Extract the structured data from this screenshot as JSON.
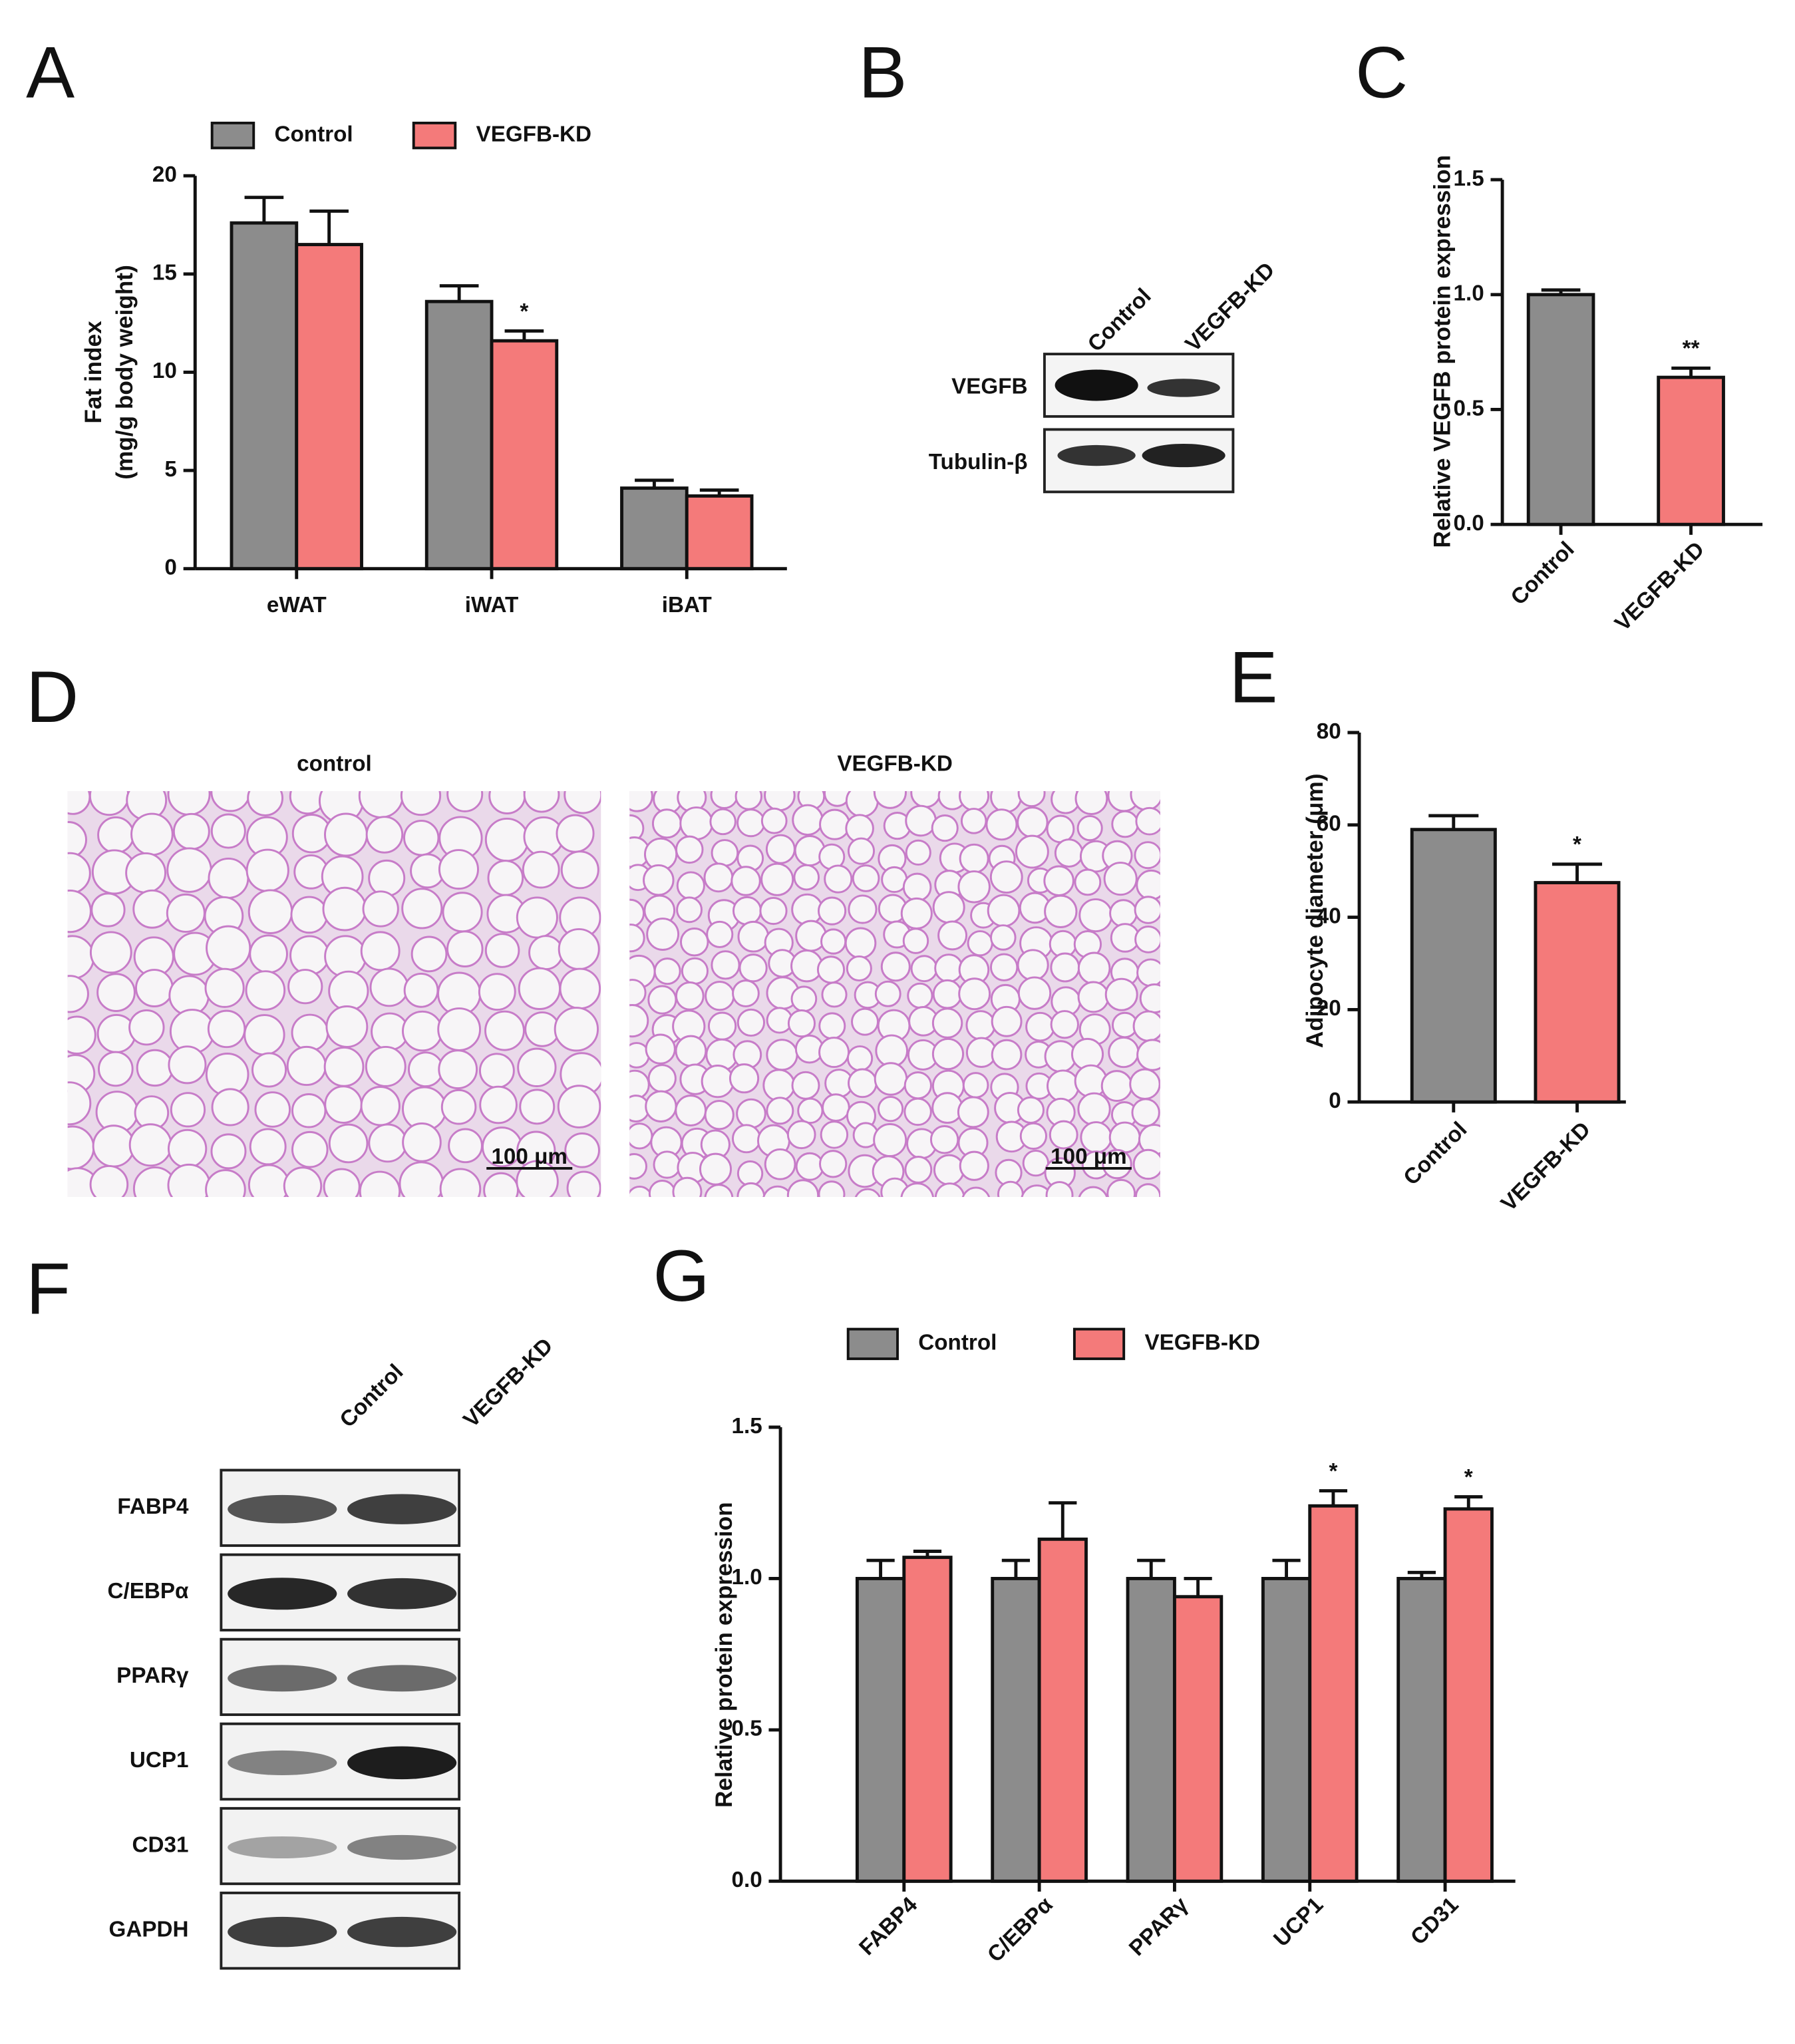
{
  "panel_labels": [
    "A",
    "B",
    "C",
    "D",
    "E",
    "F",
    "G"
  ],
  "chart_data": [
    {
      "type": "bar",
      "ylabel": [
        "Fat index",
        "(mg/g body weight)"
      ],
      "categories": [
        "eWAT",
        "iWAT",
        "iBAT"
      ],
      "series": [
        {
          "name": "Control",
          "color": "#8c8c8c",
          "values": [
            17.6,
            13.6,
            4.1
          ],
          "errors": [
            1.3,
            0.8,
            0.4
          ],
          "marks": [
            null,
            null,
            null
          ]
        },
        {
          "name": "VEGFB-KD",
          "color": "#f47a7a",
          "values": [
            16.5,
            11.6,
            3.7
          ],
          "errors": [
            1.7,
            0.5,
            0.3
          ],
          "marks": [
            null,
            "*",
            null
          ]
        }
      ],
      "ylim": [
        0,
        20
      ],
      "yticks": [
        0,
        5,
        10,
        15,
        20
      ]
    },
    {
      "type": "bar",
      "ylabel": "Relative VEGFB protein expression",
      "categories": [
        "Control",
        "VEGFB-KD"
      ],
      "values": [
        1.0,
        0.64
      ],
      "errors": [
        0.02,
        0.04
      ],
      "colors": [
        "#8c8c8c",
        "#f47a7a"
      ],
      "marks": [
        null,
        "**"
      ],
      "ylim": [
        0,
        1.5
      ],
      "yticks": [
        {
          "value": 0,
          "label": "0.0"
        },
        0.5,
        {
          "value": 1,
          "label": "1.0"
        },
        1.5
      ]
    },
    {
      "type": "bar",
      "ylabel": "Adipocyte diameter (μm)",
      "categories": [
        "Control",
        "VEGFB-KD"
      ],
      "values": [
        59,
        47.5
      ],
      "errors": [
        3,
        4
      ],
      "colors": [
        "#8c8c8c",
        "#f47a7a"
      ],
      "marks": [
        null,
        "*"
      ],
      "ylim": [
        0,
        80
      ],
      "yticks": [
        0,
        20,
        40,
        60,
        80
      ]
    },
    {
      "type": "bar",
      "ylabel": "Relative protein expression",
      "categories": [
        "FABP4",
        "C/EBPα",
        "PPARγ",
        "UCP1",
        "CD31"
      ],
      "series": [
        {
          "name": "Control",
          "color": "#8c8c8c",
          "values": [
            1.0,
            1.0,
            1.0,
            1.0,
            1.0
          ],
          "errors": [
            0.06,
            0.06,
            0.06,
            0.06,
            0.02
          ],
          "marks": [
            null,
            null,
            null,
            null,
            null
          ]
        },
        {
          "name": "VEGFB-KD",
          "color": "#f47a7a",
          "values": [
            1.07,
            1.13,
            0.94,
            1.24,
            1.23
          ],
          "errors": [
            0.02,
            0.12,
            0.06,
            0.05,
            0.04
          ],
          "marks": [
            null,
            null,
            null,
            "*",
            "*"
          ]
        }
      ],
      "ylim": [
        0,
        1.5
      ],
      "yticks": [
        {
          "value": 0,
          "label": "0.0"
        },
        0.5,
        {
          "value": 1,
          "label": "1.0"
        },
        1.5
      ]
    }
  ],
  "blot_b": {
    "lanes": [
      "Control",
      "VEGFB-KD"
    ],
    "rows": [
      "VEGFB",
      "Tubulin-β"
    ]
  },
  "histology": {
    "titles": [
      "control",
      "VEGFB-KD"
    ],
    "scale_bar": "100 μm"
  },
  "blot_f": {
    "lanes": [
      "Control",
      "VEGFB-KD"
    ],
    "rows": [
      "FABP4",
      "C/EBPα",
      "PPARγ",
      "UCP1",
      "CD31",
      "GAPDH"
    ]
  }
}
